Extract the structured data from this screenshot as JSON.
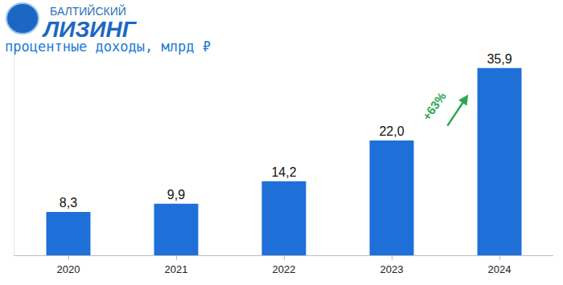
{
  "chart_data": {
    "type": "bar",
    "title": "БАЛТИЙСКИЙ ЛИЗИНГ",
    "subtitle": "процентные доходы, млрд ₽",
    "categories": [
      "2020",
      "2021",
      "2022",
      "2023",
      "2024"
    ],
    "values": [
      8.3,
      9.9,
      14.2,
      22.0,
      35.9
    ],
    "value_labels": [
      "8,3",
      "9,9",
      "14,2",
      "22,0",
      "35,9"
    ],
    "color": "#1f6fd8",
    "ylim": [
      0,
      40
    ],
    "yticks": [],
    "grid": false,
    "data_labels": true,
    "tick_labels": "x",
    "annotations": [
      {
        "text": "+63%"
      }
    ]
  }
}
